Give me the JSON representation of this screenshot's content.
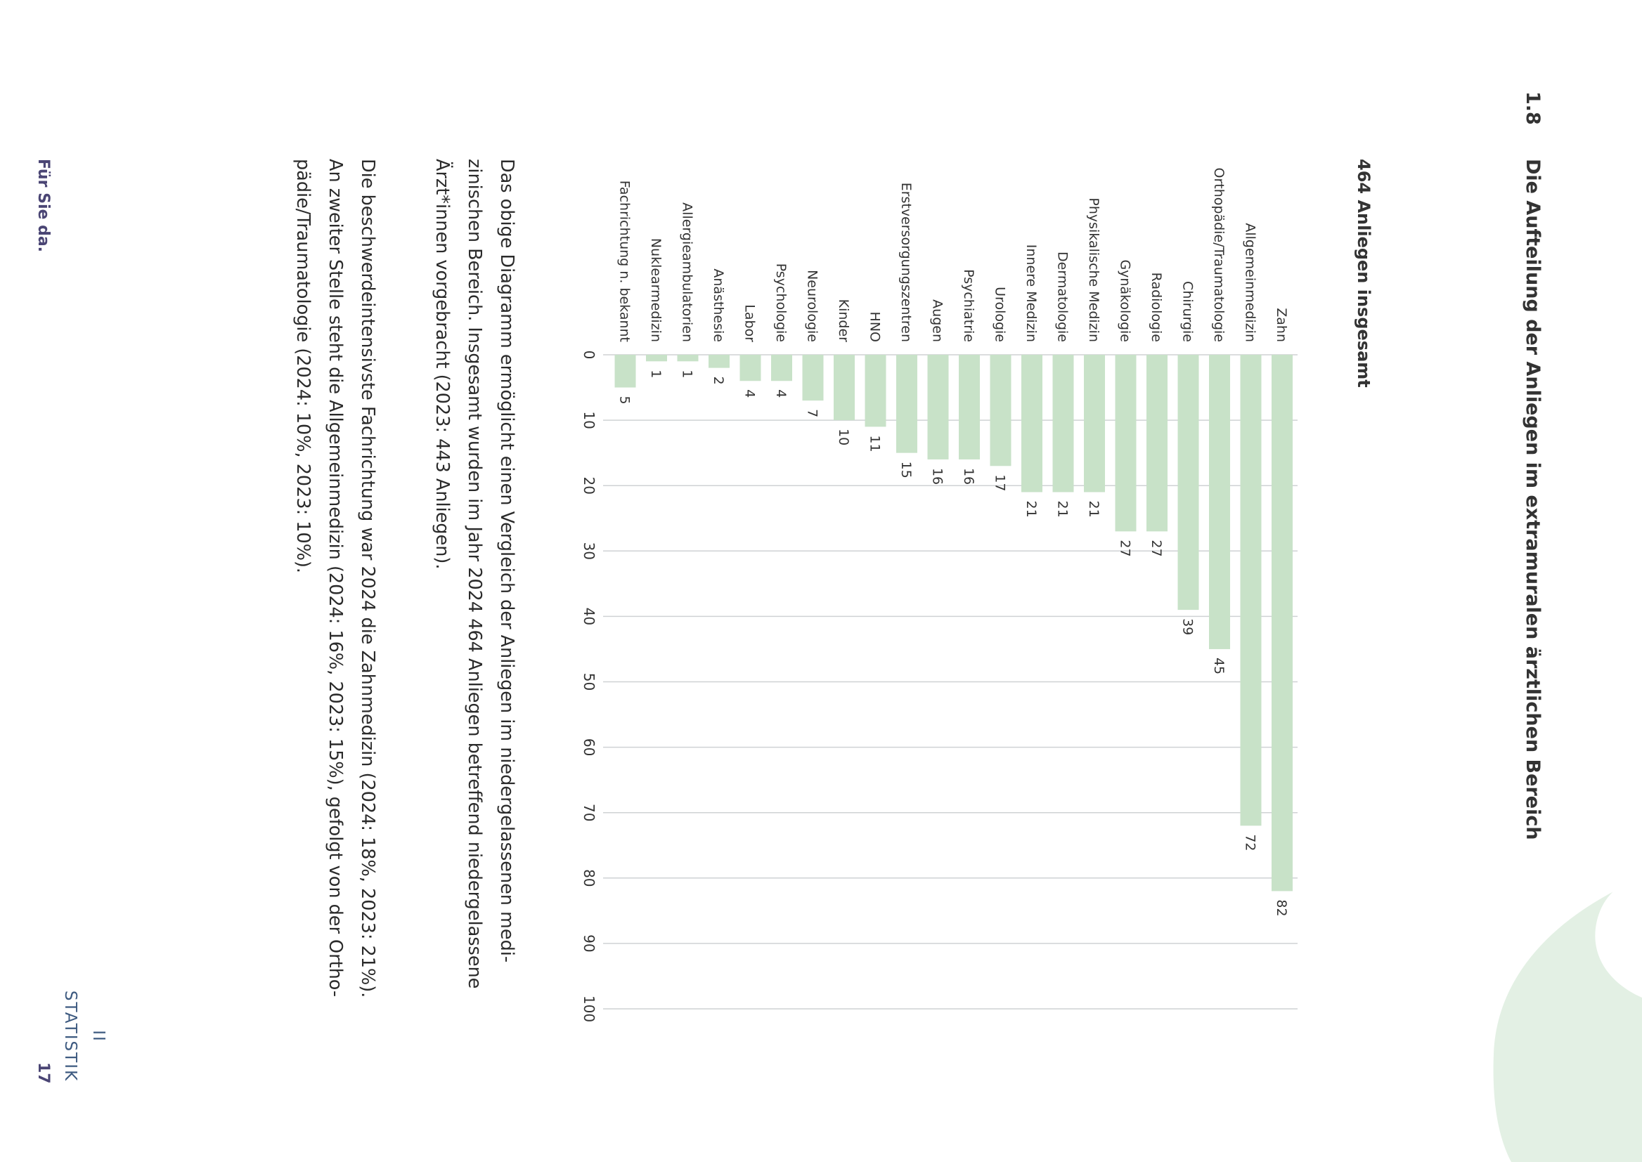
{
  "header": {
    "section_number": "1.8",
    "title": "Die Aufteilung der Anliegen im extramuralen ärztlichen Bereich",
    "subtitle": "464 Anliegen insgesamt"
  },
  "colors": {
    "bar": "#c8e2c8",
    "grid": "#cfd2d4",
    "corner_shape": "#e3f0e4",
    "footer_text": "#4a4574",
    "side_label": "#3d5a80"
  },
  "chart_data": {
    "type": "bar",
    "orientation": "horizontal",
    "categories": [
      "Zahn",
      "Allgemeinmedizin",
      "Orthopädie/Traumatologie",
      "Chirurgie",
      "Radiologie",
      "Gynäkologie",
      "Physikalische Medizin",
      "Dermatologie",
      "Innere Medizin",
      "Urologie",
      "Psychiatrie",
      "Augen",
      "Erstversorgungszentren",
      "HNO",
      "Kinder",
      "Neurologie",
      "Psychologie",
      "Labor",
      "Anästhesie",
      "Allergieambulatorien",
      "Nuklearmedizin",
      "Fachrichtung n. bekannt"
    ],
    "values": [
      82,
      72,
      45,
      39,
      27,
      27,
      21,
      21,
      21,
      17,
      16,
      16,
      15,
      11,
      10,
      7,
      4,
      4,
      2,
      1,
      1,
      5
    ],
    "value_labels": [
      "82",
      "72",
      "45",
      "39",
      "27",
      "27",
      "21",
      "21",
      "21",
      "17",
      "16",
      "16",
      "15",
      "11",
      "10",
      "7",
      "4",
      "4",
      "2",
      "1",
      "1",
      "5"
    ],
    "xlim": [
      0,
      100
    ],
    "ticks": [
      "0",
      "10",
      "20",
      "30",
      "40",
      "50",
      "60",
      "70",
      "80",
      "90",
      "100"
    ],
    "grid": true,
    "data_labels": true
  },
  "body": {
    "paragraph1": [
      "Das obige Diagramm ermöglicht einen Vergleich der Anliegen im niedergelassenen medi-",
      "zinischen Bereich. Insgesamt wurden im Jahr 2024 464 Anliegen betreffend niedergelassene",
      "Ärzt*innen vorgebracht (2023: 443 Anliegen)."
    ],
    "paragraph2": [
      "Die beschwerdeintensivste Fachrichtung war 2024 die Zahnmedizin (2024: 18%, 2023: 21%).",
      "An zweiter Stelle steht die Allgemeinmedizin (2024: 16%, 2023: 15%), gefolgt von der Ortho-",
      "pädie/Traumatologie (2024: 10%, 2023: 10%)."
    ]
  },
  "footer": {
    "brand": "Für Sie da.",
    "page_number": "17"
  },
  "side_tab": {
    "roman": "II",
    "label": "STATISTIK"
  }
}
